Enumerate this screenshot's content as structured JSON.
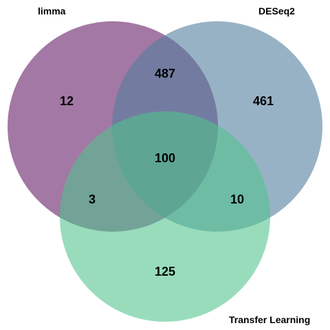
{
  "sets": [
    {
      "id": "limma",
      "label": "limma",
      "color": "#7c3f7e"
    },
    {
      "id": "deseq2",
      "label": "DESeq2",
      "color": "#537f9f"
    },
    {
      "id": "transfer",
      "label": "Transfer Learning",
      "color": "#4fc38b"
    }
  ],
  "regions": {
    "limma_only": "12",
    "deseq2_only": "461",
    "transfer_only": "125",
    "limma_deseq2": "487",
    "limma_transfer": "3",
    "deseq2_transfer": "10",
    "all_three": "100"
  }
}
